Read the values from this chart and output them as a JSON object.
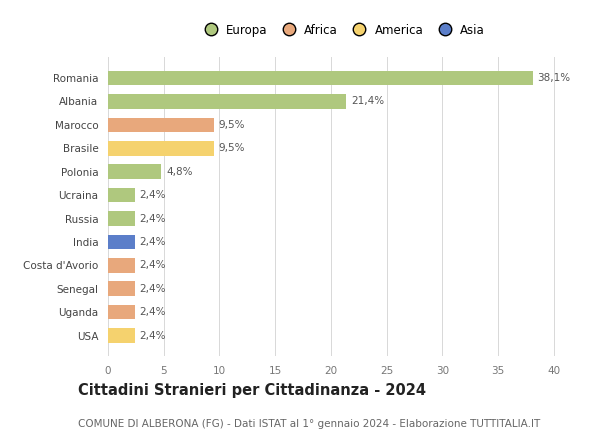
{
  "countries": [
    "Romania",
    "Albania",
    "Marocco",
    "Brasile",
    "Polonia",
    "Ucraina",
    "Russia",
    "India",
    "Costa d'Avorio",
    "Senegal",
    "Uganda",
    "USA"
  ],
  "values": [
    38.1,
    21.4,
    9.5,
    9.5,
    4.8,
    2.4,
    2.4,
    2.4,
    2.4,
    2.4,
    2.4,
    2.4
  ],
  "labels": [
    "38,1%",
    "21,4%",
    "9,5%",
    "9,5%",
    "4,8%",
    "2,4%",
    "2,4%",
    "2,4%",
    "2,4%",
    "2,4%",
    "2,4%",
    "2,4%"
  ],
  "colors": [
    "#afc87e",
    "#afc87e",
    "#e8a87c",
    "#f5d26e",
    "#afc87e",
    "#afc87e",
    "#afc87e",
    "#5b7ec9",
    "#e8a87c",
    "#e8a87c",
    "#e8a87c",
    "#f5d26e"
  ],
  "continent_labels": [
    "Europa",
    "Africa",
    "America",
    "Asia"
  ],
  "continent_colors": [
    "#afc87e",
    "#e8a87c",
    "#f5d26e",
    "#5b7ec9"
  ],
  "xlim": [
    0,
    42
  ],
  "xticks": [
    0,
    5,
    10,
    15,
    20,
    25,
    30,
    35,
    40
  ],
  "title": "Cittadini Stranieri per Cittadinanza - 2024",
  "subtitle": "COMUNE DI ALBERONA (FG) - Dati ISTAT al 1° gennaio 2024 - Elaborazione TUTTITALIA.IT",
  "title_fontsize": 10.5,
  "subtitle_fontsize": 7.5,
  "background_color": "#ffffff",
  "grid_color": "#d8d8d8",
  "bar_height": 0.62
}
